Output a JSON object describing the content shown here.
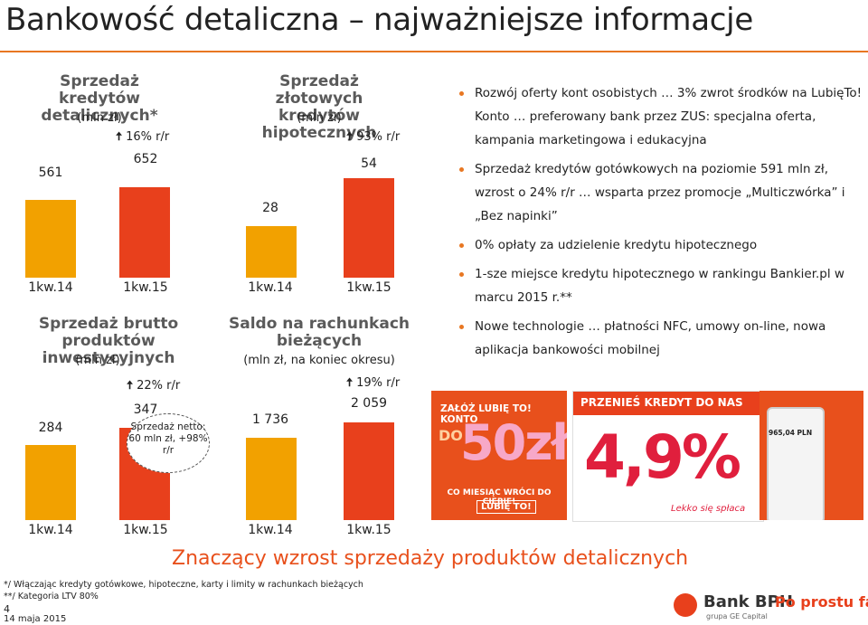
{
  "page": {
    "title": "Bankowość detaliczna – najważniejsze informacje",
    "headline": "Znaczący wzrost sprzedaży produktów detalicznych",
    "footnotes": [
      "*/ Włączając kredyty gotówkowe, hipoteczne, karty i limity w rachunkach bieżących",
      "**/ Kategoria LTV 80%"
    ],
    "page_number": "4",
    "date": "14 maja 2015",
    "brand": {
      "name": "Bank BPH",
      "sub": "grupa GE Capital",
      "slogan": "Po prostu fair"
    }
  },
  "colors": {
    "bar_prev": "#f2a100",
    "bar_curr": "#e8401c",
    "accent": "#e87722",
    "growth_arrow": "#222222"
  },
  "chart_data": [
    {
      "type": "bar",
      "title": "Sprzedaż kredytów detalicznych*",
      "subtitle": "(mln zł)",
      "categories": [
        "1kw.14",
        "1kw.15"
      ],
      "values": [
        561,
        652
      ],
      "value_labels": [
        "561",
        "652"
      ],
      "growth": "16% r/r"
    },
    {
      "type": "bar",
      "title": "Sprzedaż złotowych kredytów hipotecznych",
      "subtitle": "(mln zł)",
      "categories": [
        "1kw.14",
        "1kw.15"
      ],
      "values": [
        28,
        54
      ],
      "value_labels": [
        "28",
        "54"
      ],
      "growth": "93% r/r"
    },
    {
      "type": "bar",
      "title": "Sprzedaż brutto produktów inwestycyjnych",
      "subtitle": "(mln zł)",
      "categories": [
        "1kw.14",
        "1kw.15"
      ],
      "values": [
        284,
        347
      ],
      "value_labels": [
        "284",
        "347"
      ],
      "growth": "22% r/r",
      "annotation": "Sprzedaż netto: 60 mln zł, +98% r/r"
    },
    {
      "type": "bar",
      "title": "Saldo na rachunkach bieżących",
      "subtitle": "(mln zł, na koniec okresu)",
      "categories": [
        "1kw.14",
        "1kw.15"
      ],
      "values": [
        1736,
        2059
      ],
      "value_labels": [
        "1 736",
        "2 059"
      ],
      "growth": "19% r/r"
    }
  ],
  "bullets": [
    "Rozwój oferty kont osobistych … 3% zwrot środków na LubięTo! Konto … preferowany bank przez ZUS: specjalna oferta, kampania marketingowa i edukacyjna",
    "Sprzedaż kredytów gotówkowych na poziomie 591 mln zł, wzrost o 24% r/r … wsparta przez promocje „Multiczwórka” i „Bez napinki”",
    "0% opłaty za udzielenie kredytu hipotecznego",
    "1-sze miejsce kredytu hipotecznego w rankingu Bankier.pl w marcu 2015 r.**",
    "Nowe technologie … płatności NFC, umowy on-line, nowa aplikacja bankowości mobilnej"
  ],
  "ads": {
    "ad1": {
      "top": "ZAŁÓŻ LUBIĘ TO! KONTO",
      "do": "DO",
      "big": "50zł",
      "bottom": "CO MIESIĄC WRÓCI DO CIEBIE!",
      "logo": "LUBIĘ TO!"
    },
    "ad2": {
      "top": "PRZENIEŚ KREDYT DO NAS",
      "big": "4,9%",
      "bottom": "Lekko się spłaca"
    },
    "ad3": {
      "amount": "965,04 PLN"
    }
  }
}
